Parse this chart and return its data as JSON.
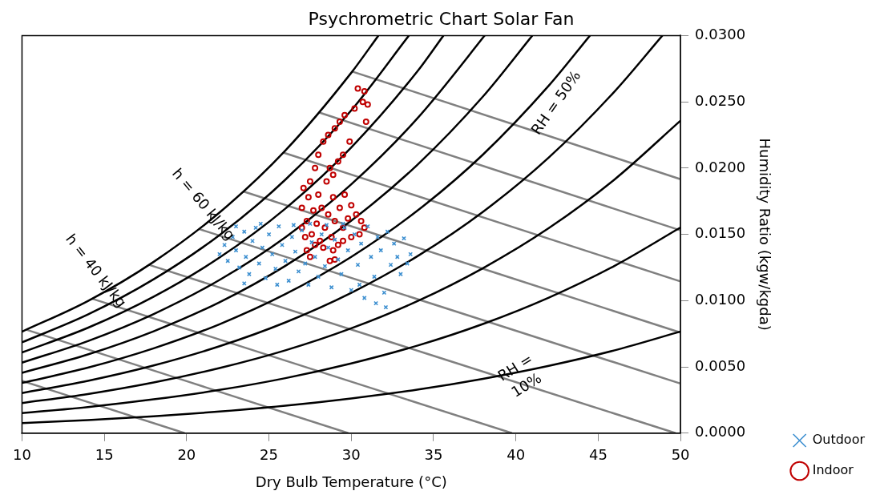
{
  "chart_data": {
    "type": "scatter",
    "title": "Psychrometric Chart Solar Fan",
    "xlabel": "Dry Bulb Temperature (°C)",
    "ylabel": "Humidity Ratio (kgw/kgda)",
    "xlim": [
      10,
      50
    ],
    "xticks": [
      10,
      15,
      20,
      25,
      30,
      35,
      40,
      45,
      50
    ],
    "ylim": [
      0,
      0.03
    ],
    "yticks": [
      {
        "value": 0,
        "label": "0.0000"
      },
      {
        "value": 0.005,
        "label": "0.0050"
      },
      {
        "value": 0.01,
        "label": "0.0100"
      },
      {
        "value": 0.015,
        "label": "0.0150"
      },
      {
        "value": 0.02,
        "label": "0.0200"
      },
      {
        "value": 0.025,
        "label": "0.0250"
      },
      {
        "value": 0.03,
        "label": "0.0300"
      }
    ],
    "grid": false,
    "legend": "bottom right",
    "series": [
      {
        "type": "line",
        "marker": "none",
        "color": "#000000",
        "x": [
          10,
          14,
          18,
          22,
          26,
          30,
          31.65
        ],
        "values": [
          0.00766,
          0.00997,
          0.01293,
          0.01665,
          0.02133,
          0.02719,
          0.03
        ]
      },
      {
        "type": "line",
        "marker": "none",
        "color": "#000000",
        "x": [
          10,
          14,
          18,
          22,
          26,
          30,
          33.5
        ],
        "values": [
          0.00685,
          0.00895,
          0.01161,
          0.01495,
          0.01913,
          0.02436,
          0.03
        ]
      },
      {
        "type": "line",
        "marker": "none",
        "color": "#000000",
        "x": [
          10,
          14,
          18,
          22,
          26,
          30,
          34,
          35.6
        ],
        "values": [
          0.00609,
          0.00795,
          0.0103,
          0.01325,
          0.01695,
          0.02156,
          0.02727,
          0.03
        ]
      },
      {
        "type": "line",
        "marker": "none",
        "color": "#000000",
        "x": [
          10,
          14,
          18,
          22,
          26,
          30,
          34,
          38,
          38.1
        ],
        "values": [
          0.00532,
          0.00695,
          0.00899,
          0.01156,
          0.01478,
          0.01878,
          0.02373,
          0.02984,
          0.03
        ]
      },
      {
        "type": "line",
        "marker": "none",
        "color": "#000000",
        "x": [
          10,
          14,
          18,
          22,
          26,
          30,
          34,
          38,
          41
        ],
        "values": [
          0.00455,
          0.00594,
          0.00769,
          0.00988,
          0.01263,
          0.01603,
          0.02023,
          0.0254,
          0.03
        ]
      },
      {
        "type": "line",
        "marker": "none",
        "color": "#000000",
        "x": [
          10,
          14,
          18,
          22,
          26,
          30,
          34,
          38,
          42,
          44.5
        ],
        "values": [
          0.00379,
          0.00494,
          0.0064,
          0.00822,
          0.01049,
          0.0133,
          0.01677,
          0.02102,
          0.02622,
          0.03
        ]
      },
      {
        "type": "line",
        "marker": "none",
        "color": "#000000",
        "x": [
          10,
          14,
          18,
          22,
          26,
          30,
          34,
          38,
          42,
          46,
          48.9
        ],
        "values": [
          0.00303,
          0.00395,
          0.00511,
          0.00656,
          0.00836,
          0.01059,
          0.01334,
          0.0167,
          0.0208,
          0.02579,
          0.03
        ]
      },
      {
        "type": "line",
        "marker": "none",
        "color": "#000000",
        "x": [
          10,
          14,
          18,
          22,
          26,
          30,
          34,
          38,
          42,
          46,
          50
        ],
        "values": [
          0.00227,
          0.00295,
          0.00382,
          0.00491,
          0.00625,
          0.00791,
          0.00995,
          0.01245,
          0.01547,
          0.01915,
          0.02358
        ]
      },
      {
        "type": "line",
        "marker": "none",
        "color": "#000000",
        "x": [
          10,
          14,
          18,
          22,
          26,
          30,
          34,
          38,
          42,
          46,
          50
        ],
        "values": [
          0.00151,
          0.00197,
          0.00255,
          0.00326,
          0.00415,
          0.00526,
          0.0066,
          0.00824,
          0.01023,
          0.01263,
          0.01552
        ]
      },
      {
        "type": "line",
        "marker": "none",
        "color": "#000000",
        "x": [
          10,
          14,
          18,
          22,
          26,
          30,
          34,
          38,
          42,
          46,
          50
        ],
        "values": [
          0.00076,
          0.00098,
          0.00127,
          0.00163,
          0.00207,
          0.00262,
          0.00328,
          0.0041,
          0.00508,
          0.00625,
          0.00767
        ]
      },
      {
        "type": "line",
        "marker": "none",
        "color": "#808080",
        "x": [
          10,
          19.88
        ],
        "values": [
          0.00395,
          0
        ]
      },
      {
        "type": "line",
        "marker": "none",
        "color": "#808080",
        "x": [
          10.26,
          29.82
        ],
        "values": [
          0.00781,
          0
        ]
      },
      {
        "type": "line",
        "marker": "none",
        "color": "#808080",
        "x": [
          14.25,
          39.76
        ],
        "values": [
          0.01015,
          0
        ]
      },
      {
        "type": "line",
        "marker": "none",
        "color": "#808080",
        "x": [
          17.71,
          49.7
        ],
        "values": [
          0.0127,
          0
        ]
      },
      {
        "type": "line",
        "marker": "none",
        "color": "#808080",
        "x": [
          20.74,
          50
        ],
        "values": [
          0.01541,
          0.00374
        ]
      },
      {
        "type": "line",
        "marker": "none",
        "color": "#808080",
        "x": [
          23.44,
          50
        ],
        "values": [
          0.01824,
          0.00759
        ]
      },
      {
        "type": "line",
        "marker": "none",
        "color": "#808080",
        "x": [
          25.87,
          50
        ],
        "values": [
          0.02117,
          0.01145
        ]
      },
      {
        "type": "line",
        "marker": "none",
        "color": "#808080",
        "x": [
          28.06,
          50
        ],
        "values": [
          0.02419,
          0.0153
        ]
      },
      {
        "type": "line",
        "marker": "none",
        "color": "#808080",
        "x": [
          30.03,
          50
        ],
        "values": [
          0.0273,
          0.01916
        ]
      },
      {
        "type": "scatter",
        "name": "Outdoor",
        "marker": "cross",
        "color": "#3c8fd0",
        "x": [
          22.0,
          22.3,
          22.5,
          22.8,
          23.0,
          23.2,
          23.5,
          23.6,
          23.8,
          24.0,
          24.2,
          24.4,
          24.6,
          24.8,
          25.0,
          25.2,
          25.4,
          25.6,
          25.8,
          26.0,
          26.2,
          26.4,
          26.6,
          26.8,
          27.0,
          27.2,
          27.4,
          27.6,
          27.8,
          28.0,
          28.2,
          28.4,
          28.6,
          28.8,
          29.0,
          29.2,
          29.4,
          29.6,
          29.8,
          30.0,
          30.2,
          30.4,
          30.6,
          30.8,
          31.0,
          31.2,
          31.4,
          31.6,
          31.8,
          32.0,
          32.1,
          32.2,
          32.4,
          32.6,
          32.8,
          33.0,
          33.2,
          33.4,
          33.6,
          31.5,
          30.5,
          29.5,
          28.5,
          27.5,
          26.5,
          25.5,
          23.5,
          24.5,
          23.0
        ],
        "values": [
          0.0135,
          0.0142,
          0.013,
          0.0148,
          0.0138,
          0.0125,
          0.0152,
          0.0133,
          0.012,
          0.0145,
          0.0155,
          0.0128,
          0.014,
          0.0117,
          0.015,
          0.0135,
          0.0124,
          0.0156,
          0.0142,
          0.013,
          0.0115,
          0.0148,
          0.0137,
          0.0122,
          0.0153,
          0.0128,
          0.0112,
          0.0144,
          0.0133,
          0.0118,
          0.015,
          0.0126,
          0.014,
          0.011,
          0.0146,
          0.0131,
          0.012,
          0.0155,
          0.0138,
          0.0108,
          0.015,
          0.0127,
          0.0143,
          0.0102,
          0.0156,
          0.0133,
          0.0118,
          0.0148,
          0.0138,
          0.0106,
          0.0095,
          0.0152,
          0.0127,
          0.0143,
          0.0133,
          0.012,
          0.0147,
          0.0128,
          0.0135,
          0.0098,
          0.0112,
          0.0158,
          0.0157,
          0.0158,
          0.0157,
          0.0112,
          0.0113,
          0.0158,
          0.0156
        ]
      },
      {
        "type": "scatter",
        "name": "Indoor",
        "marker": "circle",
        "color": "#c00000",
        "x": [
          27.0,
          27.0,
          27.1,
          27.3,
          27.4,
          27.5,
          27.6,
          27.7,
          27.9,
          28.0,
          28.1,
          28.2,
          28.4,
          28.5,
          28.6,
          28.8,
          28.9,
          29.0,
          29.2,
          29.3,
          29.5,
          29.6,
          29.8,
          28.3,
          27.8,
          27.3,
          27.5,
          28.7,
          29.0,
          28.9,
          27.2,
          27.8,
          28.0,
          28.3,
          28.6,
          29.0,
          29.3,
          29.6,
          30.2,
          30.4,
          30.8,
          30.7,
          31.0,
          30.9,
          29.9,
          29.5,
          29.2,
          28.9,
          28.7,
          30.0,
          30.3,
          30.6,
          30.8,
          30.5,
          30.0,
          29.5
        ],
        "values": [
          0.0155,
          0.017,
          0.0185,
          0.016,
          0.0178,
          0.019,
          0.015,
          0.0168,
          0.0158,
          0.018,
          0.0145,
          0.017,
          0.0155,
          0.019,
          0.0165,
          0.0148,
          0.0178,
          0.016,
          0.0142,
          0.017,
          0.0155,
          0.018,
          0.0162,
          0.014,
          0.0142,
          0.0138,
          0.0133,
          0.013,
          0.0131,
          0.0138,
          0.0148,
          0.02,
          0.021,
          0.022,
          0.0225,
          0.023,
          0.0235,
          0.024,
          0.0245,
          0.026,
          0.0258,
          0.025,
          0.0248,
          0.0235,
          0.022,
          0.021,
          0.0205,
          0.0195,
          0.02,
          0.0172,
          0.0165,
          0.016,
          0.0155,
          0.015,
          0.0148,
          0.0145
        ]
      }
    ],
    "annotations": [
      {
        "text": "RH = 50%",
        "x": 42,
        "y": 0.02622
      },
      {
        "text": "RH = 10%",
        "x": 38,
        "y": 0.0041
      },
      {
        "text": "h = 40 kJ/kg",
        "x": 14.25,
        "y": 0.01015
      },
      {
        "text": "h = 60 kJ/kg",
        "x": 20.74,
        "y": 0.01541
      }
    ]
  }
}
